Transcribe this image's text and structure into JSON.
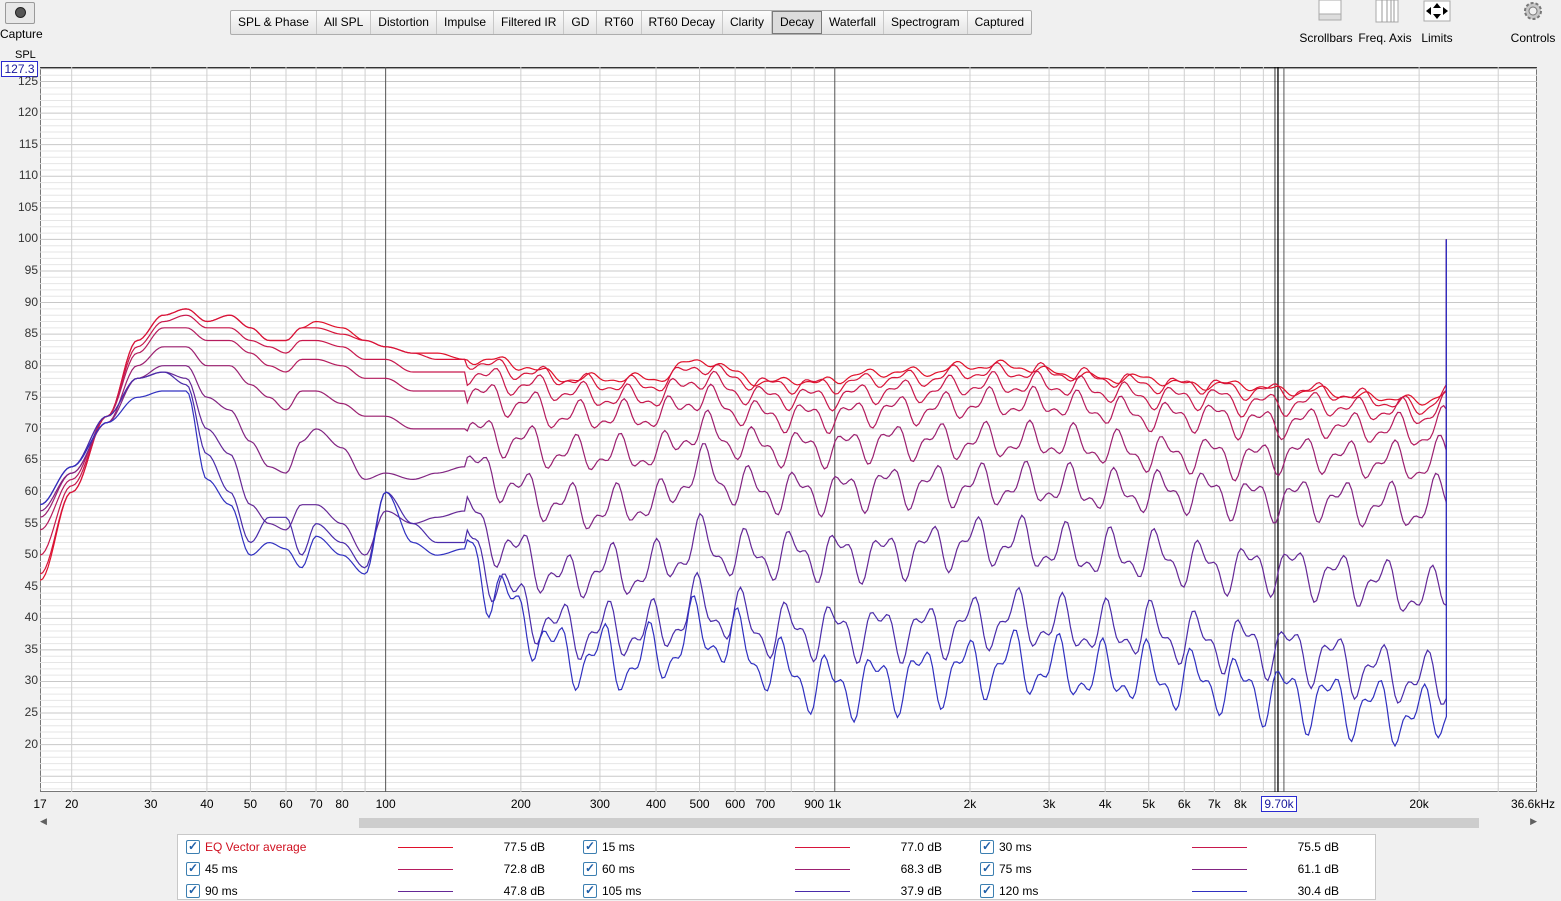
{
  "toolbar": {
    "capture_label": "Capture",
    "tabs": [
      "SPL & Phase",
      "All SPL",
      "Distortion",
      "Impulse",
      "Filtered IR",
      "GD",
      "RT60",
      "RT60 Decay",
      "Clarity",
      "Decay",
      "Waterfall",
      "Spectrogram",
      "Captured"
    ],
    "active_tab": "Decay",
    "right_tools": [
      {
        "label": "Scrollbars",
        "icon": "scrollbars-icon"
      },
      {
        "label": "Freq. Axis",
        "icon": "freq-axis-icon"
      },
      {
        "label": "Limits",
        "icon": "limits-arrows-icon"
      },
      {
        "label": "Controls",
        "icon": "gear-icon"
      }
    ]
  },
  "plot": {
    "y_axis_label": "SPL",
    "y_max_value": "127.3",
    "cursor_freq": "9.70k",
    "x_unit_label": "36.6kHz"
  },
  "chart_data": {
    "type": "line",
    "xscale": "log",
    "xlim": [
      17,
      36600
    ],
    "ylim": [
      12.5,
      127.3
    ],
    "grid": true,
    "y_ticks": [
      "125",
      "120",
      "115",
      "110",
      "105",
      "100",
      "95",
      "90",
      "85",
      "80",
      "75",
      "70",
      "65",
      "60",
      "55",
      "50",
      "45",
      "40",
      "35",
      "30",
      "25",
      "20"
    ],
    "x_ticks": [
      "17",
      "20",
      "30",
      "40",
      "50",
      "60",
      "70",
      "80",
      "100",
      "200",
      "300",
      "400",
      "500",
      "600",
      "700",
      "900",
      "1k",
      "2k",
      "3k",
      "4k",
      "5k",
      "6k",
      "7k",
      "8k",
      "20k"
    ],
    "x_tick_values": [
      17,
      20,
      30,
      40,
      50,
      60,
      70,
      80,
      100,
      200,
      300,
      400,
      500,
      600,
      700,
      900,
      1000,
      2000,
      3000,
      4000,
      5000,
      6000,
      7000,
      8000,
      20000
    ],
    "anchor_freqs": [
      17,
      20,
      24,
      28,
      32,
      36,
      40,
      45,
      50,
      55,
      60,
      65,
      70,
      80,
      90,
      100,
      115,
      130,
      150,
      170,
      200,
      250,
      300,
      350,
      400,
      500,
      600,
      700,
      800,
      900,
      1000,
      1300,
      1600,
      2000,
      2500,
      3000,
      4000,
      5000,
      6000,
      7000,
      8000,
      10000,
      12000,
      15000,
      18000,
      20000,
      23000
    ],
    "series": [
      {
        "name": "EQ Vector average",
        "color": "#e0102a",
        "value": "77.5 dB",
        "values": [
          46,
          60,
          72,
          84,
          88,
          89,
          87,
          88,
          86,
          84,
          84,
          86,
          87,
          86,
          84,
          83,
          82,
          82,
          81,
          81,
          80,
          78,
          78,
          78,
          78,
          81,
          79,
          77,
          78,
          77,
          78,
          79,
          79,
          80,
          80,
          79,
          78,
          78,
          77,
          77,
          77,
          76,
          76,
          75,
          75,
          74,
          76
        ]
      },
      {
        "name": "15 ms",
        "color": "#d8143a",
        "value": "77.0 dB",
        "values": [
          47,
          60,
          72,
          84,
          88,
          89,
          87,
          88,
          86,
          84,
          84,
          86,
          86,
          85,
          84,
          83,
          82,
          81,
          81,
          80,
          79,
          78,
          77,
          77,
          77,
          80,
          78,
          77,
          77,
          77,
          77,
          78,
          78,
          79,
          79,
          79,
          78,
          77,
          77,
          77,
          76,
          76,
          76,
          75,
          74,
          73,
          76
        ]
      },
      {
        "name": "30 ms",
        "color": "#c8184c",
        "value": "75.5 dB",
        "values": [
          50,
          61,
          72,
          83,
          87,
          88,
          86,
          86,
          84,
          83,
          82,
          84,
          84,
          83,
          81,
          81,
          79,
          79,
          79,
          78,
          77,
          76,
          75,
          75,
          75,
          78,
          76,
          75,
          75,
          75,
          75,
          76,
          76,
          77,
          77,
          77,
          76,
          75,
          75,
          75,
          74,
          74,
          74,
          73,
          73,
          72,
          74
        ]
      },
      {
        "name": "45 ms",
        "color": "#b51c5e",
        "value": "72.8 dB",
        "values": [
          54,
          62,
          72,
          82,
          86,
          86,
          84,
          84,
          82,
          80,
          79,
          81,
          81,
          80,
          78,
          78,
          76,
          76,
          76,
          75,
          74,
          72,
          72,
          72,
          72,
          75,
          73,
          72,
          72,
          72,
          72,
          73,
          73,
          74,
          74,
          74,
          73,
          72,
          72,
          72,
          71,
          71,
          71,
          70,
          70,
          69,
          71
        ]
      },
      {
        "name": "60 ms",
        "color": "#9c2070",
        "value": "68.3 dB",
        "values": [
          56,
          63,
          71,
          80,
          83,
          83,
          80,
          80,
          77,
          75,
          73,
          76,
          76,
          74,
          72,
          72,
          70,
          70,
          70,
          69,
          68,
          66,
          66,
          66,
          66,
          70,
          68,
          67,
          67,
          67,
          67,
          68,
          68,
          68,
          68,
          68,
          67,
          66,
          66,
          66,
          65,
          66,
          66,
          65,
          65,
          64,
          66
        ]
      },
      {
        "name": "75 ms",
        "color": "#822482",
        "value": "61.1 dB",
        "values": [
          57,
          63,
          71,
          78,
          80,
          80,
          75,
          73,
          68,
          64,
          63,
          68,
          70,
          67,
          62,
          63,
          62,
          63,
          64,
          63,
          60,
          58,
          57,
          58,
          58,
          64,
          61,
          60,
          60,
          60,
          60,
          61,
          61,
          61,
          61,
          61,
          60,
          60,
          60,
          60,
          59,
          59,
          59,
          58,
          58,
          57,
          60
        ]
      },
      {
        "name": "90 ms",
        "color": "#652896",
        "value": "47.8 dB",
        "values": [
          58,
          64,
          72,
          78,
          79,
          78,
          70,
          66,
          58,
          55,
          54,
          58,
          58,
          55,
          50,
          57,
          55,
          56,
          57,
          53,
          50,
          46,
          48,
          47,
          48,
          52,
          50,
          50,
          50,
          50,
          50,
          50,
          51,
          52,
          52,
          51,
          50,
          50,
          49,
          48,
          48,
          48,
          47,
          46,
          45,
          43,
          45
        ]
      },
      {
        "name": "105 ms",
        "color": "#4a2caa",
        "value": "37.9 dB",
        "values": [
          58,
          64,
          72,
          78,
          79,
          77,
          66,
          60,
          52,
          56,
          56,
          50,
          55,
          52,
          48,
          60,
          55,
          52,
          52,
          48,
          42,
          38,
          38,
          38,
          38,
          42,
          40,
          38,
          38,
          38,
          38,
          38,
          38,
          39,
          40,
          39,
          38,
          38,
          37,
          36,
          36,
          35,
          34,
          32,
          31,
          30,
          30
        ]
      },
      {
        "name": "120 ms",
        "color": "#3030c0",
        "value": "30.4 dB",
        "values": [
          58,
          64,
          71,
          75,
          76,
          76,
          62,
          58,
          50,
          52,
          51,
          48,
          53,
          50,
          47,
          60,
          52,
          50,
          51,
          46,
          40,
          34,
          34,
          33,
          34,
          38,
          36,
          33,
          31,
          30,
          29,
          30,
          31,
          32,
          33,
          32,
          31,
          31,
          30,
          30,
          29,
          28,
          27,
          26,
          25,
          24,
          26
        ]
      }
    ]
  }
}
